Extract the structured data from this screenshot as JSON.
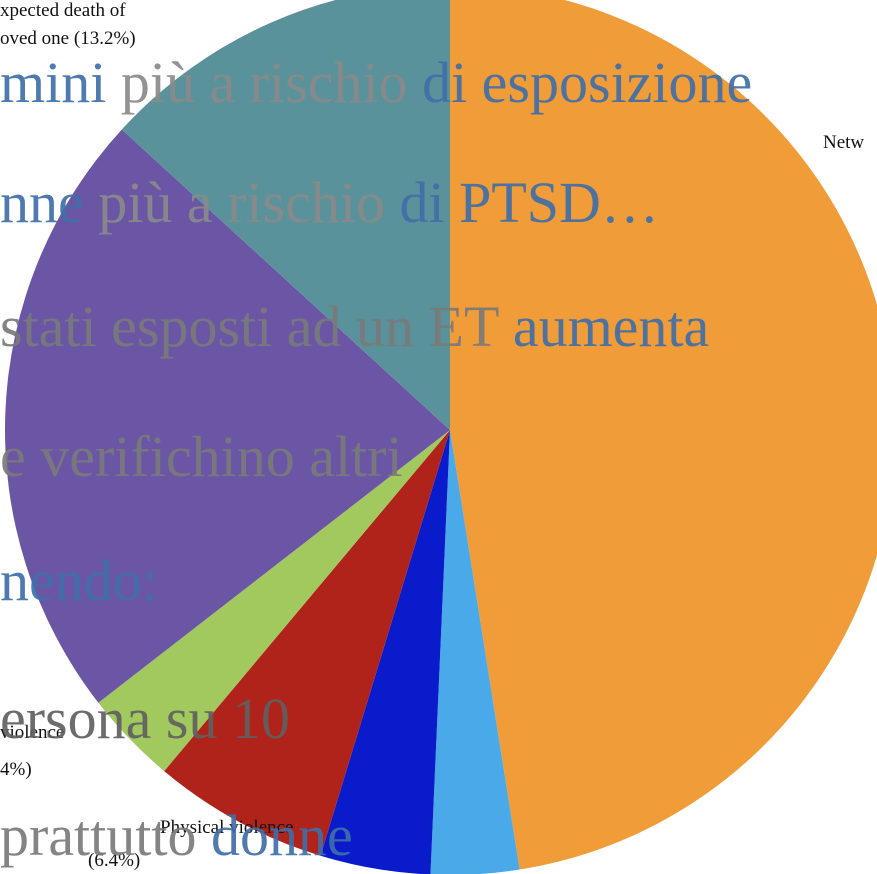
{
  "chart_data": {
    "type": "pie",
    "categories": [
      null,
      null,
      null,
      null,
      null,
      null,
      null
    ],
    "values": [
      47.5,
      3.2,
      4.0,
      6.4,
      3.4,
      22.3,
      13.2
    ],
    "colors": [
      "#f09c38",
      "#4aa9e8",
      "#0a1bcc",
      "#b0231a",
      "#a2c95e",
      "#6b56a6",
      "#5a929b"
    ],
    "annotations": [
      "xpected death of",
      "oved one (13.2%)",
      "Netw",
      "violence",
      "4%)",
      "Physical violence",
      "(6.4%)"
    ]
  },
  "slide_text": {
    "lines": [
      [
        {
          "text": "mini ",
          "color": "#3f6fa8"
        },
        {
          "text": "più a rischio ",
          "color": "#8a8a8a"
        },
        {
          "text": "di esposizione",
          "color": "#3f6fa8"
        }
      ],
      [
        {
          "text": "nne ",
          "color": "#3f6fa8"
        },
        {
          "text": "più a rischio ",
          "color": "#8a8a8a"
        },
        {
          "text": "di PTSD…",
          "color": "#3f6fa8"
        }
      ],
      [
        {
          "text": "stati esposti ad un ET ",
          "color": "#7a7a7a"
        },
        {
          "text": "aumenta",
          "color": "#3f6fa8"
        }
      ],
      [
        {
          "text": "e verifichino altri",
          "color": "#7a7a7a"
        }
      ],
      [
        {
          "text": "nendo:",
          "color": "#3f6fa8"
        }
      ],
      [
        {
          "text": "ersona su 10",
          "color": "#5f5f5f"
        }
      ],
      [
        {
          "text": "prattutto ",
          "color": "#7a7a7a"
        },
        {
          "text": "donne",
          "color": "#3f6fa8"
        }
      ]
    ]
  }
}
